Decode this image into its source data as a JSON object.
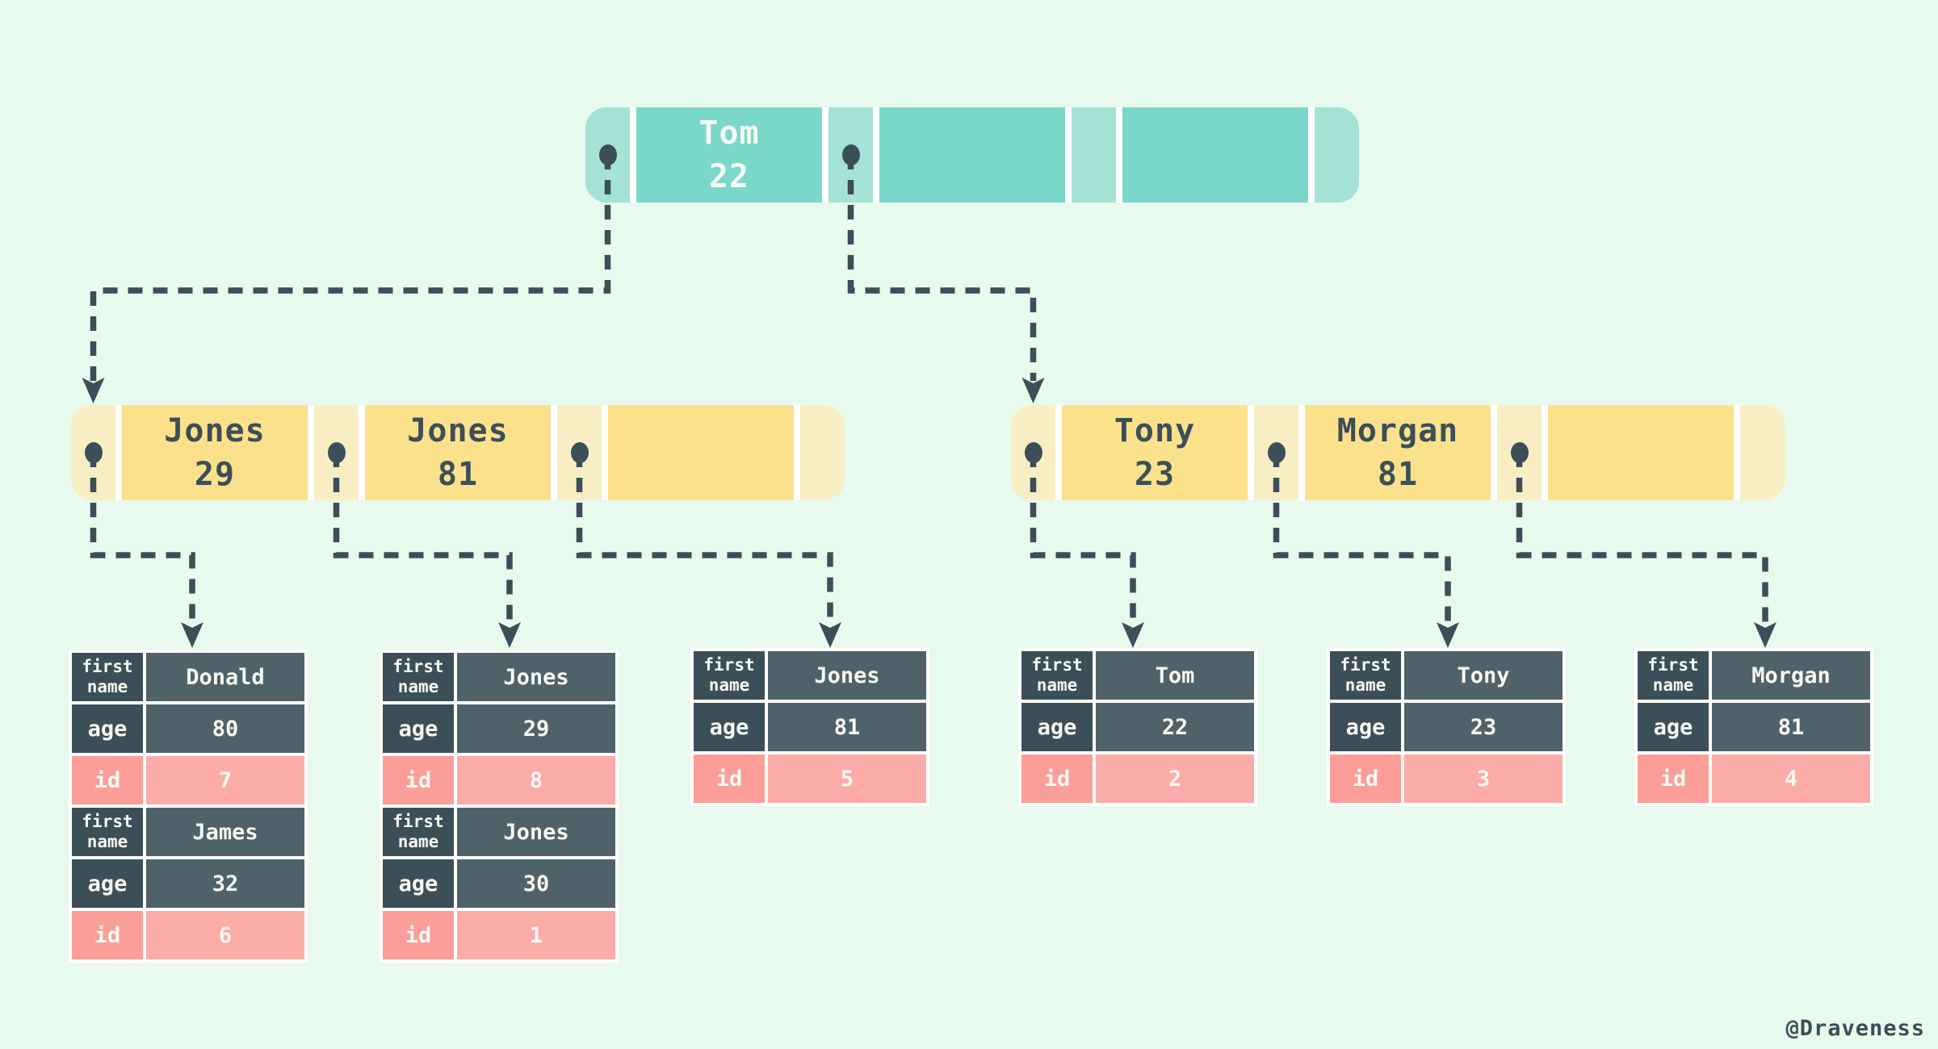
{
  "watermark": "@Draveness",
  "colors": {
    "background": "#e8f9ed",
    "teal-key": "#79d8ca",
    "teal-pointer": "#a5e2d6",
    "yellow-key": "#fce18c",
    "yellow-pointer": "#f8edc3",
    "slate": "#3c4f58",
    "slate-light": "#4f6269",
    "pink": "#fb9e9a",
    "pink-light": "#fcaca8",
    "text-on-dark": "#f7f8f2",
    "gap-white": "#ffffff"
  },
  "tree": {
    "root": {
      "palette": "teal",
      "cells": [
        {
          "type": "pointer",
          "dot": true
        },
        {
          "type": "key",
          "name": "Tom",
          "age": "22"
        },
        {
          "type": "pointer",
          "dot": true
        },
        {
          "type": "key",
          "name": "",
          "age": ""
        },
        {
          "type": "pointer",
          "dot": false
        },
        {
          "type": "key",
          "name": "",
          "age": ""
        },
        {
          "type": "pointer",
          "dot": false
        }
      ]
    },
    "leaves": [
      {
        "palette": "yellow",
        "cells": [
          {
            "type": "pointer",
            "dot": true
          },
          {
            "type": "key",
            "name": "Jones",
            "age": "29"
          },
          {
            "type": "pointer",
            "dot": true
          },
          {
            "type": "key",
            "name": "Jones",
            "age": "81"
          },
          {
            "type": "pointer",
            "dot": true
          },
          {
            "type": "key",
            "name": "",
            "age": ""
          },
          {
            "type": "pointer",
            "dot": false
          }
        ]
      },
      {
        "palette": "yellow",
        "cells": [
          {
            "type": "pointer",
            "dot": true
          },
          {
            "type": "key",
            "name": "Tony",
            "age": "23"
          },
          {
            "type": "pointer",
            "dot": true
          },
          {
            "type": "key",
            "name": "Morgan",
            "age": "81"
          },
          {
            "type": "pointer",
            "dot": true
          },
          {
            "type": "key",
            "name": "",
            "age": ""
          },
          {
            "type": "pointer",
            "dot": false
          }
        ]
      }
    ]
  },
  "row_labels": {
    "first_name": "first name",
    "age": "age",
    "id": "id"
  },
  "tables": [
    {
      "records": [
        {
          "first_name": "Donald",
          "age": "80",
          "id": "7"
        },
        {
          "first_name": "James",
          "age": "32",
          "id": "6"
        }
      ]
    },
    {
      "records": [
        {
          "first_name": "Jones",
          "age": "29",
          "id": "8"
        },
        {
          "first_name": "Jones",
          "age": "30",
          "id": "1"
        }
      ]
    },
    {
      "records": [
        {
          "first_name": "Jones",
          "age": "81",
          "id": "5"
        }
      ]
    },
    {
      "records": [
        {
          "first_name": "Tom",
          "age": "22",
          "id": "2"
        }
      ]
    },
    {
      "records": [
        {
          "first_name": "Tony",
          "age": "23",
          "id": "3"
        }
      ]
    },
    {
      "records": [
        {
          "first_name": "Morgan",
          "age": "81",
          "id": "4"
        }
      ]
    }
  ]
}
